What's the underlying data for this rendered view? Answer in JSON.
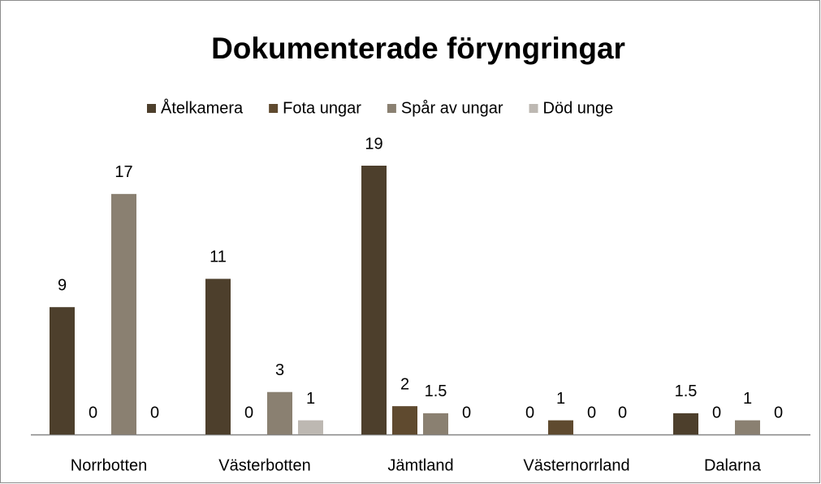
{
  "chart_data": {
    "type": "bar",
    "title": "Dokumenterade föryngringar",
    "categories": [
      "Norrbotten",
      "Västerbotten",
      "Jämtland",
      "Västernorrland",
      "Dalarna"
    ],
    "series": [
      {
        "name": "Åtelkamera",
        "color": "#4d3f2c",
        "values": [
          9,
          11,
          19,
          0,
          1.5
        ]
      },
      {
        "name": "Fota ungar",
        "color": "#5f4a2f",
        "values": [
          0,
          0,
          2,
          1,
          0
        ]
      },
      {
        "name": "Spår av ungar",
        "color": "#8a8071",
        "values": [
          17,
          3,
          1.5,
          0,
          1
        ]
      },
      {
        "name": "Död unge",
        "color": "#bdb8b2",
        "values": [
          0,
          1,
          0,
          0,
          0
        ]
      }
    ],
    "legend": "top"
  }
}
